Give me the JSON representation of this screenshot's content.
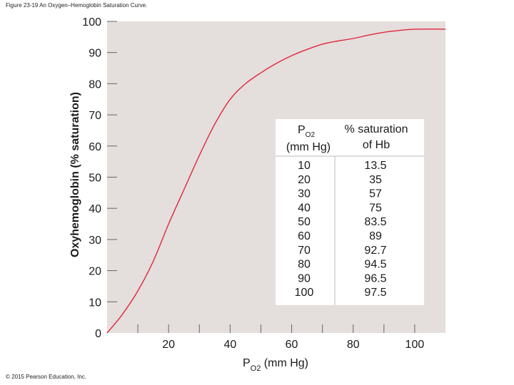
{
  "caption": "Figure 23-19 An Oxygen–Hemoglobin Saturation Curve.",
  "copyright": "© 2015 Pearson Education, Inc.",
  "colors": {
    "plot_bg": "#e4dedc",
    "curve": "#e0283a",
    "table_bg": "#ffffff"
  },
  "chart_data": {
    "type": "line",
    "title": "",
    "ylabel": "Oxyhemoglobin (% saturation)",
    "xlabel_main": "P",
    "xlabel_sub": "O2",
    "xlabel_unit": " (mm Hg)",
    "xlim": [
      0,
      110
    ],
    "ylim": [
      0,
      100
    ],
    "grid": false,
    "x_ticks": [
      20,
      40,
      60,
      80,
      100
    ],
    "y_ticks": [
      0,
      10,
      20,
      30,
      40,
      50,
      60,
      70,
      80,
      90,
      100
    ],
    "series": [
      {
        "x": [
          0,
          5,
          10,
          15,
          20,
          25,
          30,
          35,
          40,
          45,
          50,
          55,
          60,
          65,
          70,
          75,
          80,
          85,
          90,
          95,
          100,
          110
        ],
        "y": [
          0,
          6,
          13.5,
          23,
          35,
          46,
          57,
          67,
          75,
          80,
          83.5,
          86.5,
          89,
          91,
          92.7,
          93.7,
          94.5,
          95.6,
          96.5,
          97.1,
          97.5,
          97.5
        ]
      }
    ],
    "table": {
      "header_col1_main": "P",
      "header_col1_sub": "O2",
      "header_col1_line2": "(mm Hg)",
      "header_col2_line1": "% saturation",
      "header_col2_line2": "of Hb",
      "rows": [
        [
          "10",
          "13.5"
        ],
        [
          "20",
          "35"
        ],
        [
          "30",
          "57"
        ],
        [
          "40",
          "75"
        ],
        [
          "50",
          "83.5"
        ],
        [
          "60",
          "89"
        ],
        [
          "70",
          "92.7"
        ],
        [
          "80",
          "94.5"
        ],
        [
          "90",
          "96.5"
        ],
        [
          "100",
          "97.5"
        ]
      ]
    }
  }
}
